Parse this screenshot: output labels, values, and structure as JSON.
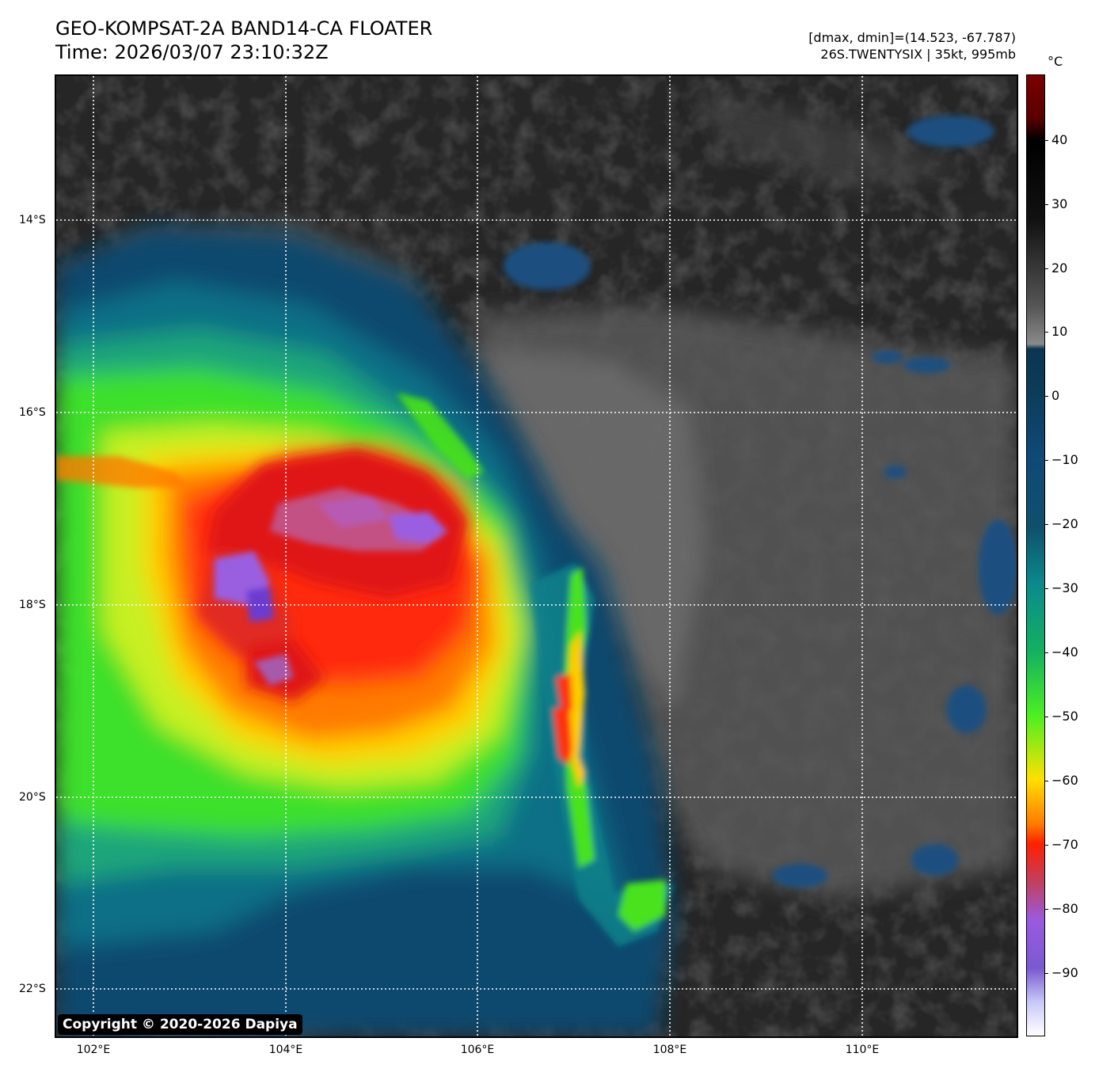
{
  "header": {
    "title_line1": "GEO-KOMPSAT-2A BAND14-CA FLOATER",
    "title_line2": "Time: 2026/03/07 23:10:32Z",
    "stats_line1": "[dmax, dmin]=(14.523, -67.787)",
    "stats_line2": "26S.TWENTYSIX | 35kt, 995mb"
  },
  "map": {
    "copyright": "Copyright © 2020-2026 Dapiya",
    "lat_labels": [
      "14°S",
      "16°S",
      "18°S",
      "20°S",
      "22°S"
    ],
    "lon_labels": [
      "102°E",
      "104°E",
      "106°E",
      "108°E",
      "110°E"
    ],
    "gridlines": "dotted-white"
  },
  "colorbar": {
    "unit": "°C",
    "ticks": [
      "40",
      "30",
      "20",
      "10",
      "0",
      "−10",
      "−20",
      "−30",
      "−40",
      "−50",
      "−60",
      "−70",
      "−80",
      "−90"
    ],
    "range": [
      -100,
      50
    ],
    "colors": [
      "#ffffff",
      "#8f60e0",
      "#ff0000",
      "#ffff00",
      "#00ff00",
      "#008b8b",
      "#003366",
      "#888888",
      "#000000",
      "#8b0000"
    ]
  }
}
